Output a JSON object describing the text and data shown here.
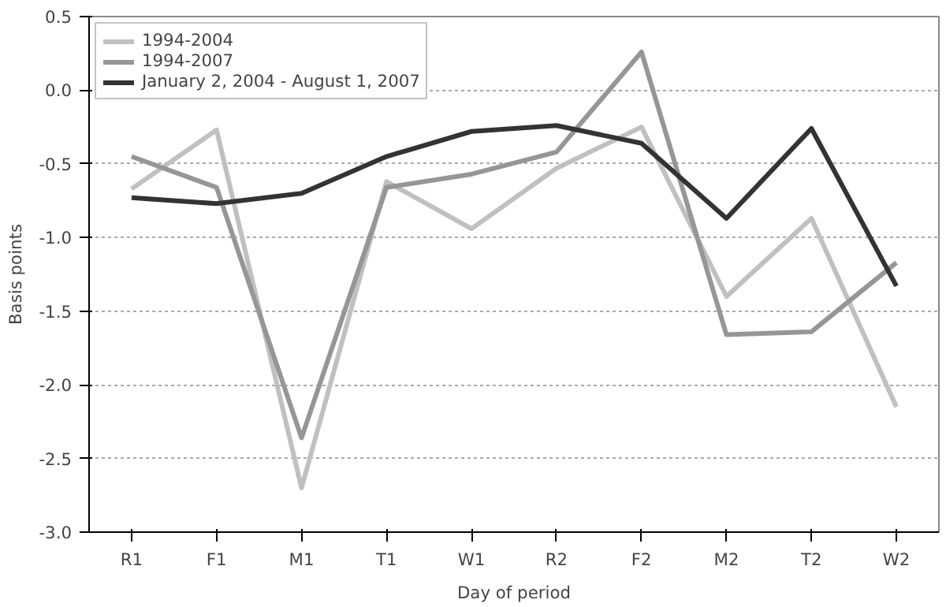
{
  "chart_data": {
    "type": "line",
    "xlabel": "Day of period",
    "ylabel": "Basis points",
    "categories": [
      "R1",
      "F1",
      "M1",
      "T1",
      "W1",
      "R2",
      "F2",
      "M2",
      "T2",
      "W2"
    ],
    "series": [
      {
        "name": "1994-2004",
        "color": "#c0c0c0",
        "values": [
          -0.67,
          -0.27,
          -2.7,
          -0.62,
          -0.94,
          -0.53,
          -0.25,
          -1.4,
          -0.87,
          -2.15
        ]
      },
      {
        "name": "1994-2007",
        "color": "#969696",
        "values": [
          -0.45,
          -0.66,
          -2.36,
          -0.66,
          -0.57,
          -0.42,
          0.26,
          -1.66,
          -1.64,
          -1.17
        ]
      },
      {
        "name": "January 2, 2004 - August 1, 2007",
        "color": "#333333",
        "values": [
          -0.73,
          -0.77,
          -0.7,
          -0.45,
          -0.28,
          -0.24,
          -0.36,
          -0.87,
          -0.26,
          -1.33
        ]
      }
    ],
    "ylim": [
      -3.0,
      0.5
    ],
    "yticks": [
      {
        "value": -3,
        "label": "-3.0"
      },
      {
        "value": -2.5,
        "label": "-2.5"
      },
      {
        "value": -2,
        "label": "-2.0"
      },
      {
        "value": -1.5,
        "label": "-1.5"
      },
      {
        "value": -1,
        "label": "-1.0"
      },
      {
        "value": -0.5,
        "label": "-0.5"
      },
      {
        "value": 0,
        "label": "0.0"
      },
      {
        "value": 0.5,
        "label": "0.5"
      }
    ],
    "grid": "y",
    "legend": "top left",
    "marker": "none",
    "line_style": "solid"
  }
}
